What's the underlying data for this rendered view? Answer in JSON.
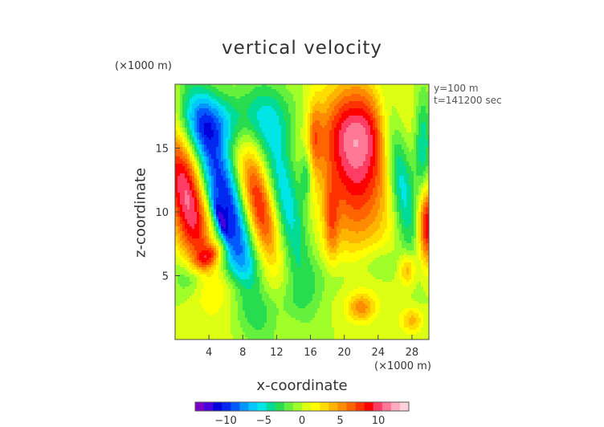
{
  "chart_data": {
    "type": "heatmap",
    "title": "vertical velocity",
    "xlabel": "x-coordinate",
    "ylabel": "z-coordinate",
    "x_unit_label": "(×1000 m)",
    "y_unit_label": "(×1000 m)",
    "annotations": [
      "y=100 m",
      "t=141200 sec"
    ],
    "xlim": [
      0,
      30
    ],
    "ylim": [
      0,
      20
    ],
    "x_ticks": [
      4,
      8,
      12,
      16,
      20,
      24,
      28
    ],
    "y_ticks": [
      5,
      10,
      15
    ],
    "x_tick_labels": [
      "4",
      "8",
      "12",
      "16",
      "20",
      "24",
      "28"
    ],
    "y_tick_labels": [
      "5",
      "10",
      "15"
    ],
    "colorbar": {
      "range": [
        -14,
        14
      ],
      "ticks": [
        -10,
        -5,
        0,
        5,
        10
      ],
      "tick_labels": [
        "−10",
        "−5",
        "0",
        "5",
        "10"
      ],
      "colors": [
        "#7a00c8",
        "#4800dc",
        "#0000dc",
        "#0028f0",
        "#005aff",
        "#0096ff",
        "#00c8ff",
        "#00e6e6",
        "#00dc96",
        "#28dc50",
        "#64f03c",
        "#a0ff28",
        "#dcff14",
        "#ffff00",
        "#ffdc00",
        "#ffb400",
        "#ff8c00",
        "#ff6400",
        "#ff3200",
        "#ff0000",
        "#ff3c64",
        "#ff7896",
        "#ffaabe",
        "#ffd2dc"
      ]
    },
    "features": [
      {
        "x": 1.5,
        "z": 11,
        "sx": 1.6,
        "sz": 4.5,
        "rot": -0.35,
        "amp": 11
      },
      {
        "x": 6,
        "z": 10.5,
        "sx": 1.5,
        "sz": 6,
        "rot": -0.4,
        "amp": -11
      },
      {
        "x": 5.3,
        "z": 9.5,
        "sx": 0.35,
        "sz": 1.3,
        "rot": -0.5,
        "amp": -5
      },
      {
        "x": 10,
        "z": 10.5,
        "sx": 1.3,
        "sz": 3.5,
        "rot": -0.35,
        "amp": 9
      },
      {
        "x": 13,
        "z": 11,
        "sx": 1.4,
        "sz": 5,
        "rot": -0.3,
        "amp": -6
      },
      {
        "x": 4,
        "z": 17,
        "sx": 3,
        "sz": 1.6,
        "rot": 0,
        "amp": -5
      },
      {
        "x": 11,
        "z": 17.5,
        "sx": 3.5,
        "sz": 1.8,
        "rot": 0,
        "amp": -3
      },
      {
        "x": 21.5,
        "z": 13.5,
        "sx": 3,
        "sz": 4.5,
        "rot": 0,
        "amp": 9
      },
      {
        "x": 21,
        "z": 16.5,
        "sx": 3.5,
        "sz": 2.2,
        "rot": 0,
        "amp": 4
      },
      {
        "x": 26.5,
        "z": 13,
        "sx": 1.1,
        "sz": 4.5,
        "rot": -0.25,
        "amp": -7
      },
      {
        "x": 29.8,
        "z": 9,
        "sx": 0.8,
        "sz": 2.2,
        "rot": 0,
        "amp": 10
      },
      {
        "x": 29.3,
        "z": 15,
        "sx": 0.7,
        "sz": 3,
        "rot": 0,
        "amp": -5
      },
      {
        "x": 22,
        "z": 2.5,
        "sx": 1.2,
        "sz": 0.8,
        "rot": 0,
        "amp": 5
      },
      {
        "x": 28,
        "z": 1.5,
        "sx": 1,
        "sz": 0.7,
        "rot": 0,
        "amp": 4
      },
      {
        "x": 27.5,
        "z": 5.5,
        "sx": 0.7,
        "sz": 0.9,
        "rot": 0,
        "amp": 5
      },
      {
        "x": 4,
        "z": 6.5,
        "sx": 1.5,
        "sz": 0.6,
        "rot": -0.4,
        "amp": 5
      },
      {
        "x": 18.5,
        "z": 9,
        "sx": 0.6,
        "sz": 2.2,
        "rot": 0,
        "amp": 4
      },
      {
        "x": 16.5,
        "z": 16,
        "sx": 0.6,
        "sz": 2,
        "rot": 0,
        "amp": 4
      },
      {
        "x": 15.5,
        "z": 13,
        "sx": 0.5,
        "sz": 1.5,
        "rot": 0,
        "amp": -4
      },
      {
        "x": 2,
        "z": 5,
        "sx": 1.5,
        "sz": 1,
        "rot": 0,
        "amp": -4
      },
      {
        "x": 8,
        "z": 4,
        "sx": 2,
        "sz": 1,
        "rot": 0,
        "amp": 2
      },
      {
        "x": 14,
        "z": 3,
        "sx": 2,
        "sz": 1.2,
        "rot": 0,
        "amp": -1.5
      },
      {
        "x": 18,
        "z": 5,
        "sx": 2.5,
        "sz": 1.2,
        "rot": 0,
        "amp": -1.5
      },
      {
        "x": 24,
        "z": 6,
        "sx": 2,
        "sz": 1,
        "rot": 0,
        "amp": -2
      }
    ]
  }
}
